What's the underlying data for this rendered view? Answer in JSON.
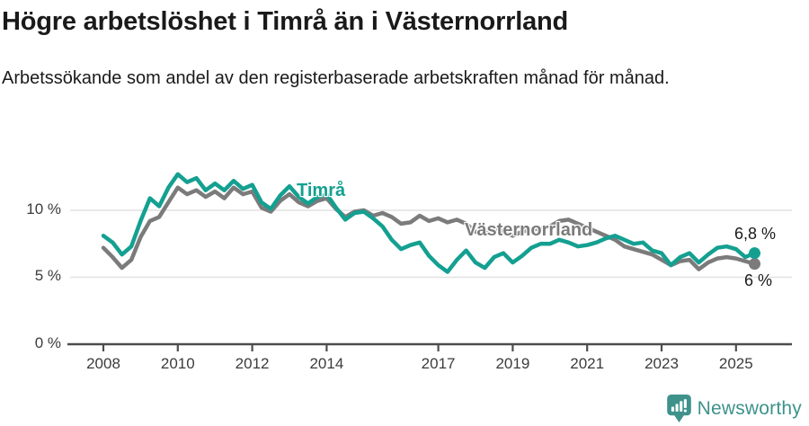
{
  "header": {
    "title": "Högre arbetslöshet i Timrå än i Västernorrland",
    "subtitle": "Arbetssökande som andel av den registerbaserade arbetskraften månad för månad."
  },
  "colors": {
    "timra": "#14a091",
    "vasternorrland": "#7b7b7b",
    "grid": "#e1e1e1",
    "axis": "#4d4d4d",
    "text": "#1a1a1a",
    "tick_text": "#3c3c3c",
    "brand": "#3e928b"
  },
  "chart_data": {
    "type": "line",
    "title": "Högre arbetslöshet i Timrå än i Västernorrland",
    "subtitle": "Arbetssökande som andel av den registerbaserade arbetskraften månad för månad.",
    "xlabel": "",
    "ylabel": "",
    "grid": "horizontal",
    "legend_position": "inline-labels",
    "y_ticks": [
      {
        "value": 0,
        "label": "0 %"
      },
      {
        "value": 5,
        "label": "5 %"
      },
      {
        "value": 10,
        "label": "10 %"
      }
    ],
    "x_ticks": [
      "2008",
      "2010",
      "2012",
      "2014",
      "2017",
      "2019",
      "2021",
      "2023",
      "2025"
    ],
    "x_tick_years": [
      2008,
      2010,
      2012,
      2014,
      2017,
      2019,
      2021,
      2023,
      2025
    ],
    "xlim": [
      2007.3,
      2026.4
    ],
    "ylim": [
      0,
      13.6
    ],
    "x": [
      2008.0,
      2008.25,
      2008.5,
      2008.75,
      2009.0,
      2009.25,
      2009.5,
      2009.75,
      2010.0,
      2010.25,
      2010.5,
      2010.75,
      2011.0,
      2011.25,
      2011.5,
      2011.75,
      2012.0,
      2012.25,
      2012.5,
      2012.75,
      2013.0,
      2013.25,
      2013.5,
      2013.75,
      2014.0,
      2014.25,
      2014.5,
      2014.75,
      2015.0,
      2015.25,
      2015.5,
      2015.75,
      2016.0,
      2016.25,
      2016.5,
      2016.75,
      2017.0,
      2017.25,
      2017.5,
      2017.75,
      2018.0,
      2018.25,
      2018.5,
      2018.75,
      2019.0,
      2019.25,
      2019.5,
      2019.75,
      2020.0,
      2020.25,
      2020.5,
      2020.75,
      2021.0,
      2021.25,
      2021.5,
      2021.75,
      2022.0,
      2022.25,
      2022.5,
      2022.75,
      2023.0,
      2023.25,
      2023.5,
      2023.75,
      2024.0,
      2024.25,
      2024.5,
      2024.75,
      2025.0,
      2025.25,
      2025.5
    ],
    "series": [
      {
        "name": "Timrå",
        "color": "#14a091",
        "end_label": "6,8 %",
        "end_value": 6.8,
        "values": [
          8.1,
          7.6,
          6.7,
          7.3,
          9.2,
          10.9,
          10.3,
          11.7,
          12.7,
          12.1,
          12.4,
          11.5,
          12.0,
          11.5,
          12.2,
          11.6,
          11.9,
          10.6,
          10.1,
          11.1,
          11.8,
          11.0,
          10.5,
          11.0,
          11.2,
          10.2,
          9.3,
          9.8,
          9.9,
          9.4,
          8.8,
          7.8,
          7.1,
          7.4,
          7.6,
          6.6,
          5.9,
          5.4,
          6.3,
          7.0,
          6.1,
          5.7,
          6.5,
          6.8,
          6.1,
          6.6,
          7.2,
          7.5,
          7.5,
          7.8,
          7.6,
          7.3,
          7.4,
          7.6,
          7.9,
          8.1,
          7.8,
          7.5,
          7.6,
          7.0,
          6.8,
          5.9,
          6.5,
          6.8,
          6.1,
          6.7,
          7.2,
          7.3,
          7.1,
          6.5,
          6.8
        ]
      },
      {
        "name": "Västernorrland",
        "color": "#7b7b7b",
        "end_label": "6 %",
        "end_value": 6.0,
        "values": [
          7.2,
          6.5,
          5.7,
          6.3,
          8.0,
          9.2,
          9.5,
          10.6,
          11.7,
          11.2,
          11.5,
          11.0,
          11.4,
          10.9,
          11.7,
          11.2,
          11.4,
          10.2,
          9.9,
          10.7,
          11.2,
          10.6,
          10.3,
          10.7,
          10.9,
          10.1,
          9.5,
          9.9,
          10.0,
          9.6,
          9.8,
          9.5,
          9.0,
          9.1,
          9.6,
          9.2,
          9.4,
          9.1,
          9.3,
          9.0,
          8.4,
          8.2,
          8.7,
          8.4,
          8.1,
          8.4,
          8.6,
          8.6,
          8.8,
          9.2,
          9.3,
          9.0,
          8.7,
          8.4,
          8.1,
          7.8,
          7.3,
          7.1,
          6.9,
          6.7,
          6.3,
          5.9,
          6.2,
          6.3,
          5.6,
          6.1,
          6.4,
          6.5,
          6.4,
          6.2,
          6.0
        ]
      }
    ]
  },
  "footer": {
    "brand": "Newsworthy"
  }
}
